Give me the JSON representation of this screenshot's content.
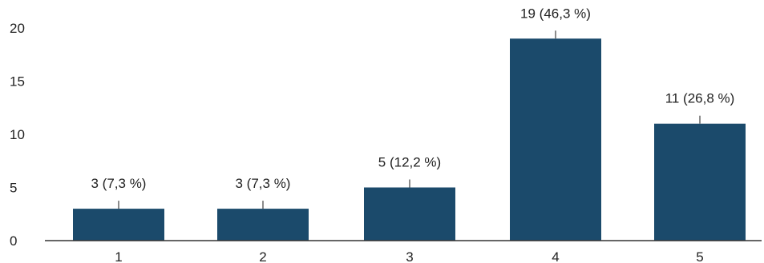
{
  "chart_data": {
    "type": "bar",
    "categories": [
      "1",
      "2",
      "3",
      "4",
      "5"
    ],
    "values": [
      3,
      3,
      5,
      19,
      11
    ],
    "data_labels": [
      "3 (7,3 %)",
      "3 (7,3 %)",
      "5 (12,2 %)",
      "19 (46,3 %)",
      "11 (26,8 %)"
    ],
    "y_ticks": [
      0,
      5,
      10,
      15,
      20
    ],
    "ylim": [
      0,
      20
    ],
    "title": "",
    "xlabel": "",
    "ylabel": "",
    "grid": false,
    "legend": "none"
  },
  "colors": {
    "bar": "#1b4a6b",
    "axis": "#333333",
    "leader": "#666666",
    "text": "#222222"
  }
}
